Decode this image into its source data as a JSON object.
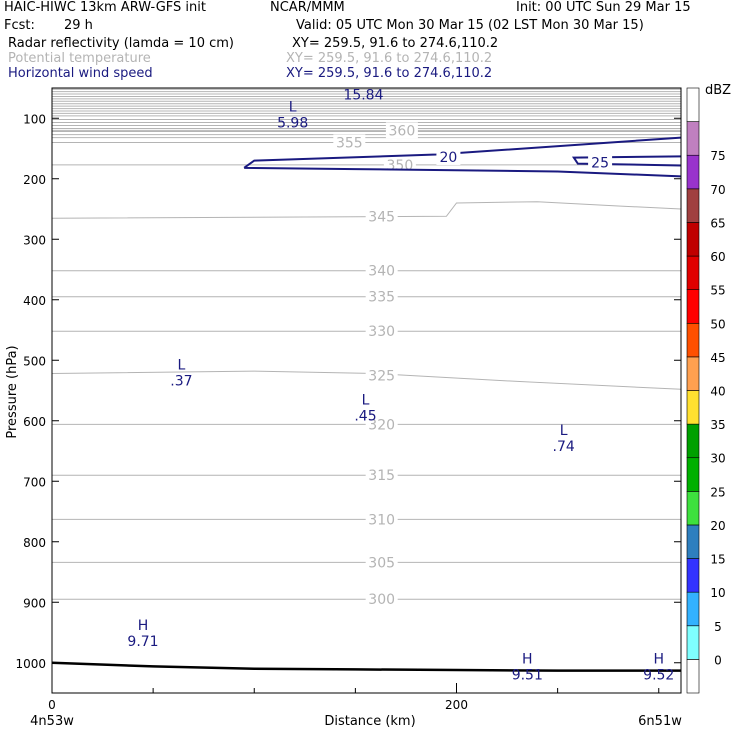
{
  "header": {
    "model": "HAIC-HIWC 13km ARW-GFS init",
    "org": "NCAR/MMM",
    "init": "Init: 00 UTC Sun 29 Mar 15",
    "fcst_label": "Fcst:",
    "fcst_value": "29 h",
    "valid": "Valid: 05 UTC Mon 30 Mar 15 (02 LST Mon 30 Mar 15)",
    "fields": [
      {
        "name": "Radar reflectivity (lamda = 10 cm)",
        "xy": "XY= 259.5, 91.6 to 274.6,110.2",
        "color": "#000000"
      },
      {
        "name": "Potential temperature",
        "xy": "XY= 259.5, 91.6 to 274.6,110.2",
        "color": "#b4b4b4"
      },
      {
        "name": "Horizontal wind speed",
        "xy": "XY= 259.5, 91.6 to 274.6,110.2",
        "color": "#1a1a80"
      }
    ]
  },
  "chart_data": {
    "type": "cross-section contour",
    "xlabel": "Distance (km)",
    "ylabel": "Pressure (hPa)",
    "x_ticks": [
      0,
      200
    ],
    "x_minor_ticks": [
      50,
      100,
      150,
      250,
      300
    ],
    "xlim": [
      0,
      311
    ],
    "y_ticks": [
      100,
      200,
      300,
      400,
      500,
      600,
      700,
      800,
      900,
      1000
    ],
    "ylim": [
      1050,
      50
    ],
    "endpoint_labels": {
      "left": "4n53w",
      "right": "6n51w"
    },
    "colorbar": {
      "unit": "dBZ",
      "levels": [
        0,
        5,
        10,
        15,
        20,
        25,
        30,
        35,
        40,
        45,
        50,
        55,
        60,
        65,
        70,
        75
      ],
      "colors": [
        "#ffffff",
        "#7fffff",
        "#33b2ff",
        "#3333ff",
        "#2e7fbf",
        "#3ee03e",
        "#00b000",
        "#00a000",
        "#ffe030",
        "#ffa050",
        "#ff5000",
        "#ff0000",
        "#e00000",
        "#c00000",
        "#a04040",
        "#9933cc",
        "#c080c0",
        "#ffffff"
      ]
    },
    "theta_contours": {
      "color": "#b4b4b4",
      "levels": [
        {
          "value": "300",
          "p": 895,
          "label_x": 163
        },
        {
          "value": "305",
          "p": 834,
          "label_x": 163
        },
        {
          "value": "310",
          "p": 763,
          "label_x": 163
        },
        {
          "value": "315",
          "p": 690,
          "label_x": 163
        },
        {
          "value": "320",
          "p": 606,
          "label_x": 163
        },
        {
          "value": "325",
          "p": 525,
          "label_x": 163
        },
        {
          "value": "330",
          "p": 452,
          "label_x": 163
        },
        {
          "value": "335",
          "p": 395,
          "label_x": 163
        },
        {
          "value": "340",
          "p": 352,
          "label_x": 163
        },
        {
          "value": "345",
          "p": 262,
          "label_x": 163
        },
        {
          "value": "350",
          "p": 177,
          "label_x": 172
        },
        {
          "value": "355",
          "p": 140,
          "label_x": 147
        },
        {
          "value": "360",
          "p": 120,
          "label_x": 173
        }
      ]
    },
    "wind_contours": {
      "color": "#1a1a80",
      "levels": [
        {
          "value": "20",
          "label_x": 196,
          "p": 164
        },
        {
          "value": "25",
          "label_x": 271,
          "p": 173
        }
      ]
    },
    "wind_extrema": [
      {
        "type": "L",
        "value": "5.98",
        "x": 119,
        "p": 105
      },
      {
        "type": "",
        "value": "15.84",
        "x": 154,
        "p": 59
      },
      {
        "type": "L",
        "value": ".37",
        "x": 64,
        "p": 532
      },
      {
        "type": "L",
        "value": ".45",
        "x": 155,
        "p": 590
      },
      {
        "type": "L",
        "value": ".74",
        "x": 253,
        "p": 640
      },
      {
        "type": "H",
        "value": "9.71",
        "x": 45,
        "p": 962
      },
      {
        "type": "H",
        "value": "9.51",
        "x": 235,
        "p": 1018
      },
      {
        "type": "H",
        "value": "9.52",
        "x": 300,
        "p": 1018
      }
    ],
    "terrain": {
      "x": [
        0,
        50,
        100,
        150,
        200,
        250,
        311
      ],
      "p": [
        1000,
        1006,
        1010,
        1011,
        1012,
        1013,
        1013
      ]
    }
  }
}
